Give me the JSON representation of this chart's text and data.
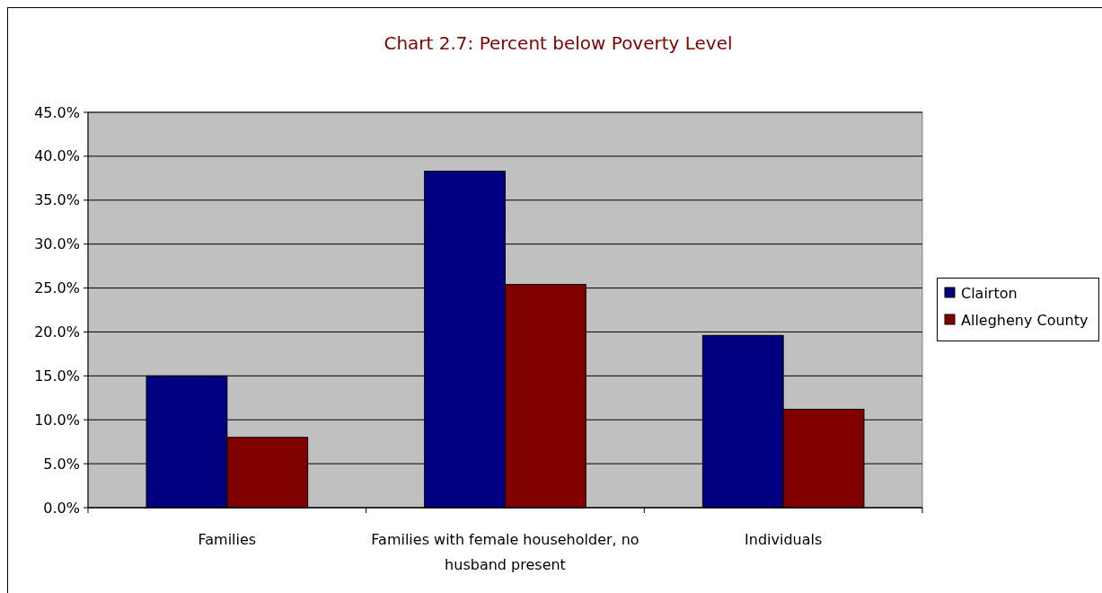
{
  "chart_data": {
    "type": "bar",
    "title": "Chart 2.7: Percent below Poverty Level",
    "categories": [
      "Families",
      "Families with female householder, no husband present",
      "Individuals"
    ],
    "series": [
      {
        "name": "Clairton",
        "color": "#000080",
        "values": [
          15.0,
          38.3,
          19.6
        ]
      },
      {
        "name": "Allegheny County",
        "color": "#800000",
        "values": [
          8.0,
          25.4,
          11.2
        ]
      }
    ],
    "ylim": [
      0,
      45
    ],
    "yticks": [
      {
        "value": 0,
        "label": "0.0%"
      },
      {
        "value": 5,
        "label": "5.0%"
      },
      {
        "value": 10,
        "label": "10.0%"
      },
      {
        "value": 15,
        "label": "15.0%"
      },
      {
        "value": 20,
        "label": "20.0%"
      },
      {
        "value": 25,
        "label": "25.0%"
      },
      {
        "value": 30,
        "label": "30.0%"
      },
      {
        "value": 35,
        "label": "35.0%"
      },
      {
        "value": 40,
        "label": "40.0%"
      },
      {
        "value": 45,
        "label": "45.0%"
      }
    ],
    "grid": "y",
    "legend": "right"
  }
}
